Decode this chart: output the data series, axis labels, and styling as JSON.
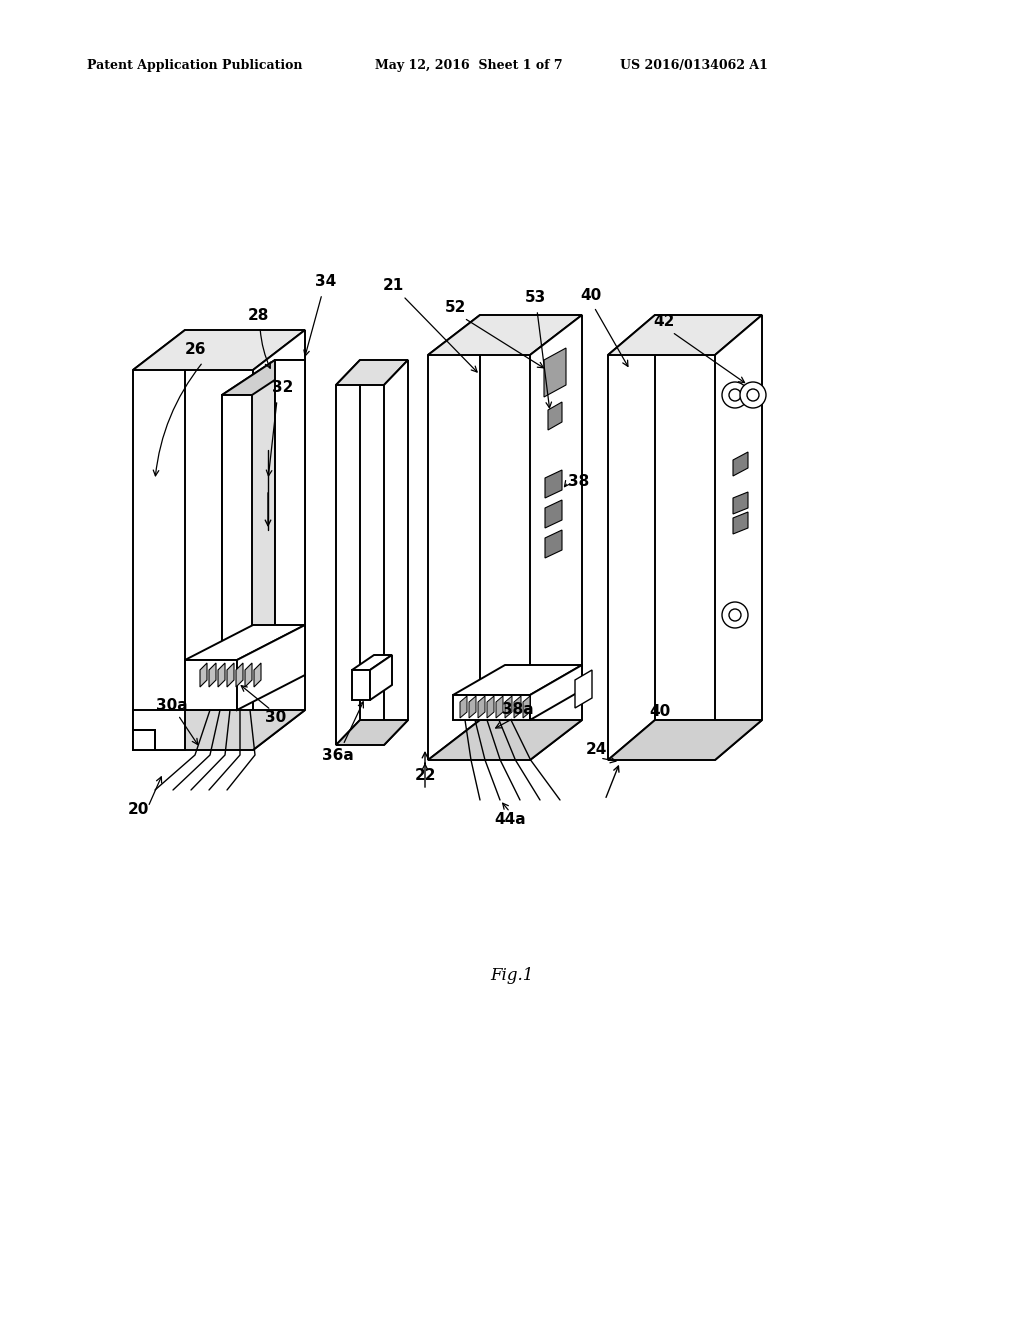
{
  "bg_color": "#ffffff",
  "header_left": "Patent Application Publication",
  "header_mid": "May 12, 2016  Sheet 1 of 7",
  "header_right": "US 2016/0134062 A1",
  "fig_label": "Fig.1",
  "lw": 1.4,
  "lw_thin": 1.0,
  "label_fontsize": 11
}
